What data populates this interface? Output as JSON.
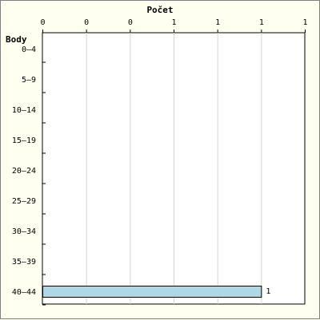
{
  "chart_data": {
    "type": "bar",
    "orientation": "horizontal",
    "title": "Počet",
    "ylabel": "Body",
    "categories": [
      "0–4",
      "5–9",
      "10–14",
      "15–19",
      "20–24",
      "25–29",
      "30–34",
      "35–39",
      "40–44"
    ],
    "values": [
      0,
      0,
      0,
      0,
      0,
      0,
      0,
      0,
      1
    ],
    "data_labels": [
      "",
      "",
      "",
      "",
      "",
      "",
      "",
      "",
      "1"
    ],
    "x_ticks": [
      "0",
      "0",
      "0",
      "1",
      "1",
      "1",
      "1"
    ],
    "xlim": [
      0,
      1.2
    ],
    "grid": true,
    "bar_color": "#add8e6",
    "plot_background": "#ffffff",
    "page_background": "#fffff0"
  }
}
